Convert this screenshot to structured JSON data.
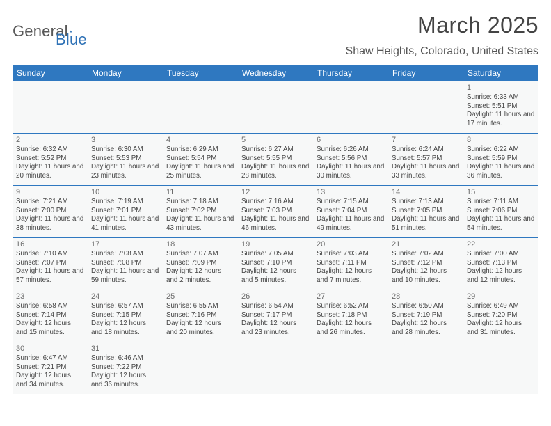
{
  "logo": {
    "part1": "General",
    "part2": "Blue"
  },
  "title": "March 2025",
  "location": "Shaw Heights, Colorado, United States",
  "colors": {
    "header": "#2f78c0",
    "rule": "#2f78c0",
    "cell_bg": "#f7f8f8"
  },
  "days": [
    "Sunday",
    "Monday",
    "Tuesday",
    "Wednesday",
    "Thursday",
    "Friday",
    "Saturday"
  ],
  "weeks": [
    [
      null,
      null,
      null,
      null,
      null,
      null,
      {
        "n": "1",
        "sr": "6:33 AM",
        "ss": "5:51 PM",
        "dl": "11 hours and 17 minutes."
      }
    ],
    [
      {
        "n": "2",
        "sr": "6:32 AM",
        "ss": "5:52 PM",
        "dl": "11 hours and 20 minutes."
      },
      {
        "n": "3",
        "sr": "6:30 AM",
        "ss": "5:53 PM",
        "dl": "11 hours and 23 minutes."
      },
      {
        "n": "4",
        "sr": "6:29 AM",
        "ss": "5:54 PM",
        "dl": "11 hours and 25 minutes."
      },
      {
        "n": "5",
        "sr": "6:27 AM",
        "ss": "5:55 PM",
        "dl": "11 hours and 28 minutes."
      },
      {
        "n": "6",
        "sr": "6:26 AM",
        "ss": "5:56 PM",
        "dl": "11 hours and 30 minutes."
      },
      {
        "n": "7",
        "sr": "6:24 AM",
        "ss": "5:57 PM",
        "dl": "11 hours and 33 minutes."
      },
      {
        "n": "8",
        "sr": "6:22 AM",
        "ss": "5:59 PM",
        "dl": "11 hours and 36 minutes."
      }
    ],
    [
      {
        "n": "9",
        "sr": "7:21 AM",
        "ss": "7:00 PM",
        "dl": "11 hours and 38 minutes."
      },
      {
        "n": "10",
        "sr": "7:19 AM",
        "ss": "7:01 PM",
        "dl": "11 hours and 41 minutes."
      },
      {
        "n": "11",
        "sr": "7:18 AM",
        "ss": "7:02 PM",
        "dl": "11 hours and 43 minutes."
      },
      {
        "n": "12",
        "sr": "7:16 AM",
        "ss": "7:03 PM",
        "dl": "11 hours and 46 minutes."
      },
      {
        "n": "13",
        "sr": "7:15 AM",
        "ss": "7:04 PM",
        "dl": "11 hours and 49 minutes."
      },
      {
        "n": "14",
        "sr": "7:13 AM",
        "ss": "7:05 PM",
        "dl": "11 hours and 51 minutes."
      },
      {
        "n": "15",
        "sr": "7:11 AM",
        "ss": "7:06 PM",
        "dl": "11 hours and 54 minutes."
      }
    ],
    [
      {
        "n": "16",
        "sr": "7:10 AM",
        "ss": "7:07 PM",
        "dl": "11 hours and 57 minutes."
      },
      {
        "n": "17",
        "sr": "7:08 AM",
        "ss": "7:08 PM",
        "dl": "11 hours and 59 minutes."
      },
      {
        "n": "18",
        "sr": "7:07 AM",
        "ss": "7:09 PM",
        "dl": "12 hours and 2 minutes."
      },
      {
        "n": "19",
        "sr": "7:05 AM",
        "ss": "7:10 PM",
        "dl": "12 hours and 5 minutes."
      },
      {
        "n": "20",
        "sr": "7:03 AM",
        "ss": "7:11 PM",
        "dl": "12 hours and 7 minutes."
      },
      {
        "n": "21",
        "sr": "7:02 AM",
        "ss": "7:12 PM",
        "dl": "12 hours and 10 minutes."
      },
      {
        "n": "22",
        "sr": "7:00 AM",
        "ss": "7:13 PM",
        "dl": "12 hours and 12 minutes."
      }
    ],
    [
      {
        "n": "23",
        "sr": "6:58 AM",
        "ss": "7:14 PM",
        "dl": "12 hours and 15 minutes."
      },
      {
        "n": "24",
        "sr": "6:57 AM",
        "ss": "7:15 PM",
        "dl": "12 hours and 18 minutes."
      },
      {
        "n": "25",
        "sr": "6:55 AM",
        "ss": "7:16 PM",
        "dl": "12 hours and 20 minutes."
      },
      {
        "n": "26",
        "sr": "6:54 AM",
        "ss": "7:17 PM",
        "dl": "12 hours and 23 minutes."
      },
      {
        "n": "27",
        "sr": "6:52 AM",
        "ss": "7:18 PM",
        "dl": "12 hours and 26 minutes."
      },
      {
        "n": "28",
        "sr": "6:50 AM",
        "ss": "7:19 PM",
        "dl": "12 hours and 28 minutes."
      },
      {
        "n": "29",
        "sr": "6:49 AM",
        "ss": "7:20 PM",
        "dl": "12 hours and 31 minutes."
      }
    ],
    [
      {
        "n": "30",
        "sr": "6:47 AM",
        "ss": "7:21 PM",
        "dl": "12 hours and 34 minutes."
      },
      {
        "n": "31",
        "sr": "6:46 AM",
        "ss": "7:22 PM",
        "dl": "12 hours and 36 minutes."
      },
      null,
      null,
      null,
      null,
      null
    ]
  ],
  "labels": {
    "sunrise": "Sunrise:",
    "sunset": "Sunset:",
    "daylight": "Daylight:"
  }
}
